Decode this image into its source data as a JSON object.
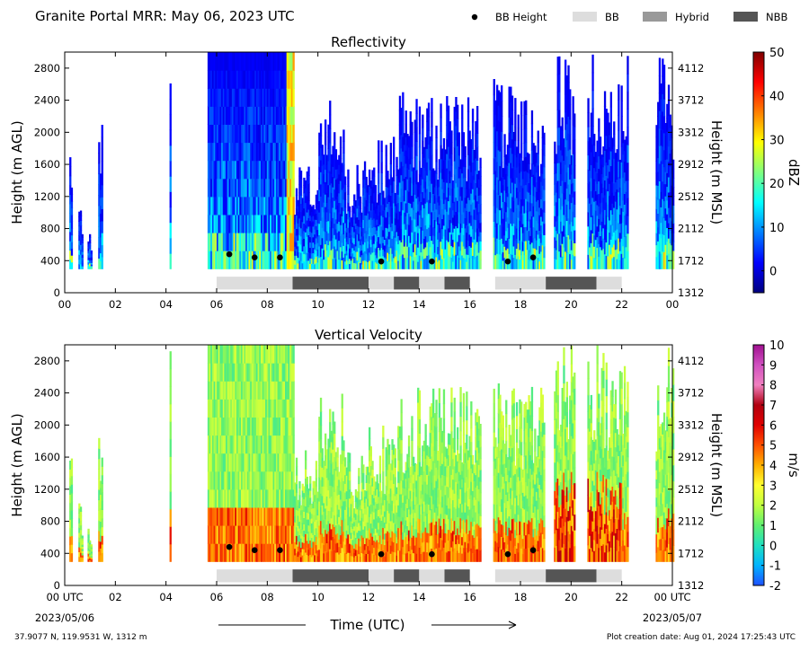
{
  "header": {
    "title": "Granite Portal MRR:  May 06, 2023 UTC",
    "legend": [
      {
        "label": "BB Height",
        "kind": "dot",
        "color": "#000000"
      },
      {
        "label": "BB",
        "kind": "swatch",
        "color": "#dddddd"
      },
      {
        "label": "Hybrid",
        "kind": "swatch",
        "color": "#999999"
      },
      {
        "label": "NBB",
        "kind": "swatch",
        "color": "#555555"
      }
    ]
  },
  "footer": {
    "location": "37.9077 N, 119.9531 W, 1312 m",
    "creation": "Plot creation date: Aug 01, 2024 17:25:43 UTC",
    "start_date": "2023/05/06",
    "end_date": "2023/05/07",
    "xlabel": "Time (UTC)"
  },
  "chart_data": [
    {
      "type": "heatmap",
      "title": "Reflectivity",
      "ylabel": "Height (m AGL)",
      "ylabel_right": "Height (m MSL)",
      "ylim": [
        0,
        3000
      ],
      "yticks": [
        0,
        400,
        800,
        1200,
        1600,
        2000,
        2400,
        2800
      ],
      "yticks_right": [
        "1312",
        "1712",
        "2112",
        "2512",
        "2912",
        "3312",
        "3712",
        "4112"
      ],
      "xticks": [
        "00",
        "02",
        "04",
        "06",
        "08",
        "10",
        "12",
        "14",
        "16",
        "18",
        "20",
        "22",
        "00"
      ],
      "colorbar": {
        "label": "dBZ",
        "ticks": [
          "0",
          "10",
          "20",
          "30",
          "40",
          "50"
        ],
        "range": [
          -5,
          50
        ],
        "colors": [
          "#00007f",
          "#0000ff",
          "#007fff",
          "#00ffff",
          "#7fff7f",
          "#ffff00",
          "#ff7f00",
          "#ff0000",
          "#7f0000"
        ]
      },
      "bb_height": [
        {
          "t": 6.5,
          "h": 480
        },
        {
          "t": 7.5,
          "h": 440
        },
        {
          "t": 8.5,
          "h": 440
        },
        {
          "t": 12.5,
          "h": 390
        },
        {
          "t": 14.5,
          "h": 390
        },
        {
          "t": 17.5,
          "h": 390
        },
        {
          "t": 18.5,
          "h": 440
        }
      ],
      "bb_type": [
        {
          "start": 6,
          "end": 9,
          "type": "BB"
        },
        {
          "start": 9,
          "end": 12,
          "type": "NBB"
        },
        {
          "start": 12,
          "end": 13,
          "type": "BB"
        },
        {
          "start": 13,
          "end": 14,
          "type": "NBB"
        },
        {
          "start": 14,
          "end": 15,
          "type": "BB"
        },
        {
          "start": 15,
          "end": 16,
          "type": "NBB"
        },
        {
          "start": 17,
          "end": 19,
          "type": "BB"
        },
        {
          "start": 19,
          "end": 21,
          "type": "NBB"
        },
        {
          "start": 21,
          "end": 22,
          "type": "BB"
        }
      ]
    },
    {
      "type": "heatmap",
      "title": "Vertical Velocity",
      "ylabel": "Height (m AGL)",
      "ylabel_right": "Height (m MSL)",
      "ylim": [
        0,
        3000
      ],
      "yticks": [
        0,
        400,
        800,
        1200,
        1600,
        2000,
        2400,
        2800
      ],
      "yticks_right": [
        "1312",
        "1712",
        "2112",
        "2512",
        "2912",
        "3312",
        "3712",
        "4112"
      ],
      "xticks": [
        "00 UTC",
        "02",
        "04",
        "06",
        "08",
        "10",
        "12",
        "14",
        "16",
        "18",
        "20",
        "22",
        "00 UTC"
      ],
      "colorbar": {
        "label": "m/s",
        "ticks": [
          "-2",
          "-1",
          "0",
          "1",
          "2",
          "3",
          "4",
          "5",
          "6",
          "7",
          "8",
          "9",
          "10"
        ],
        "range": [
          -2,
          10
        ],
        "colors": [
          "#1e50ff",
          "#00b4ff",
          "#20e0c0",
          "#60f070",
          "#c0ff40",
          "#ffff30",
          "#ffb000",
          "#ff5000",
          "#e00000",
          "#b00010",
          "#f080c0",
          "#d050c0",
          "#a01090"
        ]
      },
      "bb_height": [
        {
          "t": 6.5,
          "h": 480
        },
        {
          "t": 7.5,
          "h": 440
        },
        {
          "t": 8.5,
          "h": 440
        },
        {
          "t": 12.5,
          "h": 390
        },
        {
          "t": 14.5,
          "h": 390
        },
        {
          "t": 17.5,
          "h": 390
        },
        {
          "t": 18.5,
          "h": 440
        }
      ],
      "bb_type": [
        {
          "start": 6,
          "end": 9,
          "type": "BB"
        },
        {
          "start": 9,
          "end": 12,
          "type": "NBB"
        },
        {
          "start": 12,
          "end": 13,
          "type": "BB"
        },
        {
          "start": 13,
          "end": 14,
          "type": "NBB"
        },
        {
          "start": 14,
          "end": 15,
          "type": "BB"
        },
        {
          "start": 15,
          "end": 16,
          "type": "NBB"
        },
        {
          "start": 17,
          "end": 19,
          "type": "BB"
        },
        {
          "start": 19,
          "end": 21,
          "type": "NBB"
        },
        {
          "start": 21,
          "end": 22,
          "type": "BB"
        }
      ]
    }
  ]
}
